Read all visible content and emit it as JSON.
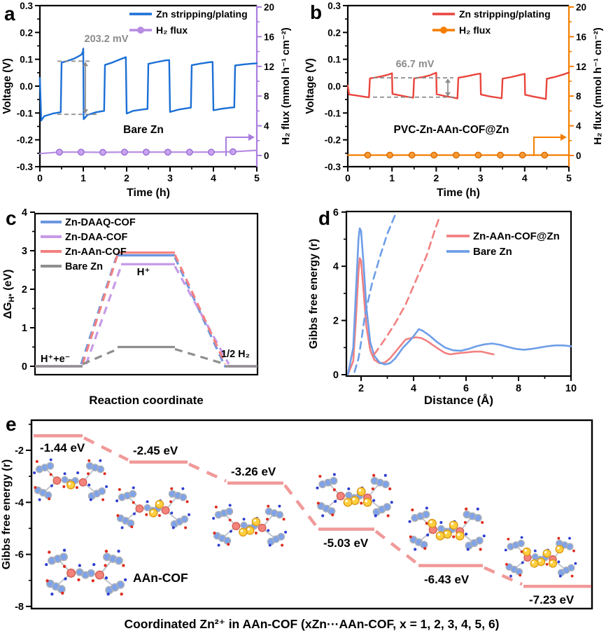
{
  "figure": {
    "panel_letters": [
      "a",
      "b",
      "c",
      "d",
      "e"
    ]
  },
  "chart_data": [
    {
      "panel": "a",
      "type": "line",
      "xlabel": "Time (h)",
      "ylabel_left": "Voltage (V)",
      "ylabel_right": "H₂ flux (mmol h⁻¹ cm⁻²)",
      "xlim": [
        0,
        5
      ],
      "ylim_left": [
        -0.3,
        0.3
      ],
      "ylim_right": [
        0,
        20
      ],
      "xticks": [
        0,
        1,
        2,
        3,
        4,
        5
      ],
      "yticks_left": [
        -0.3,
        -0.2,
        -0.1,
        0.0,
        0.1,
        0.2,
        0.3
      ],
      "yticks_right": [
        0,
        4,
        8,
        12,
        16,
        20
      ],
      "legend": [
        {
          "label": "Zn stripping/plating",
          "color": "#1b6fd6",
          "marker": false
        },
        {
          "label": "H₂ flux",
          "color": "#b78ce2",
          "marker": true
        }
      ],
      "sample_label": "Bare Zn",
      "annotation": {
        "text": "203.2 mV",
        "high_V": 0.093,
        "low_V": -0.105
      },
      "accent_color": "#a97de0",
      "series": [
        {
          "name": "Zn stripping/plating",
          "axis": "left",
          "color": "#1b6fd6",
          "points": [
            [
              0,
              0.03
            ],
            [
              0.03,
              -0.128
            ],
            [
              0.1,
              -0.112
            ],
            [
              0.3,
              -0.102
            ],
            [
              0.48,
              -0.097
            ],
            [
              0.5,
              0.088
            ],
            [
              0.62,
              0.093
            ],
            [
              0.78,
              0.102
            ],
            [
              0.9,
              0.112
            ],
            [
              0.96,
              0.118
            ],
            [
              0.99,
              0.128
            ],
            [
              1.0,
              0.14
            ],
            [
              1.01,
              -0.123
            ],
            [
              1.1,
              -0.107
            ],
            [
              1.3,
              -0.097
            ],
            [
              1.48,
              -0.092
            ],
            [
              1.5,
              0.079
            ],
            [
              1.65,
              0.087
            ],
            [
              1.85,
              0.1
            ],
            [
              1.98,
              0.108
            ],
            [
              2.0,
              -0.102
            ],
            [
              2.15,
              -0.092
            ],
            [
              2.35,
              -0.087
            ],
            [
              2.48,
              -0.085
            ],
            [
              2.5,
              0.083
            ],
            [
              2.7,
              0.09
            ],
            [
              2.9,
              0.096
            ],
            [
              2.98,
              0.097
            ],
            [
              3.0,
              -0.096
            ],
            [
              3.2,
              -0.087
            ],
            [
              3.4,
              -0.082
            ],
            [
              3.48,
              -0.08
            ],
            [
              3.5,
              0.078
            ],
            [
              3.7,
              0.084
            ],
            [
              3.9,
              0.089
            ],
            [
              3.98,
              0.09
            ],
            [
              4.0,
              -0.09
            ],
            [
              4.2,
              -0.084
            ],
            [
              4.4,
              -0.08
            ],
            [
              4.48,
              -0.079
            ],
            [
              4.5,
              0.077
            ],
            [
              4.7,
              0.081
            ],
            [
              4.9,
              0.084
            ],
            [
              5.0,
              0.085
            ]
          ]
        },
        {
          "name": "H₂ flux",
          "axis": "right",
          "color": "#b78ce2",
          "marker": true,
          "marker_fill": "#c9a4ee",
          "marker_edge": "#9a6cd8",
          "points": [
            [
              0,
              0.25
            ],
            [
              0.45,
              0.45
            ],
            [
              0.95,
              0.45
            ],
            [
              1.45,
              0.42
            ],
            [
              1.95,
              0.45
            ],
            [
              2.45,
              0.45
            ],
            [
              2.95,
              0.45
            ],
            [
              3.45,
              0.45
            ],
            [
              3.95,
              0.45
            ],
            [
              4.45,
              0.5
            ],
            [
              5.0,
              0.7
            ]
          ]
        }
      ]
    },
    {
      "panel": "b",
      "type": "line",
      "xlabel": "Time (h)",
      "ylabel_left": "Voltage (V)",
      "ylabel_right": "H₂ flux (mmol h⁻¹ cm⁻²)",
      "xlim": [
        0,
        5
      ],
      "ylim_left": [
        -0.3,
        0.3
      ],
      "ylim_right": [
        0,
        20
      ],
      "xticks": [
        0,
        1,
        2,
        3,
        4,
        5
      ],
      "yticks_left": [
        -0.3,
        -0.2,
        -0.1,
        0.0,
        0.1,
        0.2,
        0.3
      ],
      "yticks_right": [
        0,
        4,
        8,
        12,
        16,
        20
      ],
      "legend": [
        {
          "label": "Zn stripping/plating",
          "color": "#e9453c",
          "marker": false
        },
        {
          "label": "H₂ flux",
          "color": "#f57e00",
          "marker": true
        }
      ],
      "sample_label": "PVC-Zn-AAn-COF@Zn",
      "annotation": {
        "text": "66.7 mV",
        "high_V": 0.031,
        "low_V": -0.041
      },
      "accent_color": "#f57e00",
      "series": [
        {
          "name": "Zn stripping/plating",
          "axis": "left",
          "color": "#e9453c",
          "points": [
            [
              0,
              0.002
            ],
            [
              0.03,
              -0.031
            ],
            [
              0.2,
              -0.035
            ],
            [
              0.35,
              -0.039
            ],
            [
              0.48,
              -0.042
            ],
            [
              0.5,
              0.029
            ],
            [
              0.65,
              0.033
            ],
            [
              0.8,
              0.038
            ],
            [
              0.92,
              0.043
            ],
            [
              1.0,
              0.048
            ],
            [
              1.01,
              -0.029
            ],
            [
              1.2,
              -0.035
            ],
            [
              1.35,
              -0.04
            ],
            [
              1.48,
              -0.043
            ],
            [
              1.5,
              0.029
            ],
            [
              1.7,
              0.034
            ],
            [
              1.85,
              0.04
            ],
            [
              2.0,
              0.05
            ],
            [
              2.01,
              -0.03
            ],
            [
              2.2,
              -0.037
            ],
            [
              2.4,
              -0.043
            ],
            [
              2.48,
              -0.046
            ],
            [
              2.5,
              0.031
            ],
            [
              2.7,
              0.037
            ],
            [
              2.9,
              0.044
            ],
            [
              3.0,
              0.047
            ],
            [
              3.01,
              -0.031
            ],
            [
              3.2,
              -0.038
            ],
            [
              3.4,
              -0.043
            ],
            [
              3.48,
              -0.045
            ],
            [
              3.5,
              0.028
            ],
            [
              3.7,
              0.034
            ],
            [
              3.9,
              0.042
            ],
            [
              4.0,
              0.046
            ],
            [
              4.01,
              -0.032
            ],
            [
              4.2,
              -0.039
            ],
            [
              4.4,
              -0.045
            ],
            [
              4.48,
              -0.048
            ],
            [
              4.5,
              0.027
            ],
            [
              4.7,
              0.035
            ],
            [
              4.9,
              0.045
            ],
            [
              5.0,
              0.051
            ]
          ]
        },
        {
          "name": "H₂ flux",
          "axis": "right",
          "color": "#f57e00",
          "marker": true,
          "marker_fill": "#f79a33",
          "marker_edge": "#d86a00",
          "points": [
            [
              0,
              0.05
            ],
            [
              0.45,
              0.05
            ],
            [
              0.95,
              0.05
            ],
            [
              1.45,
              0.05
            ],
            [
              1.95,
              0.05
            ],
            [
              2.45,
              0.05
            ],
            [
              2.95,
              0.05
            ],
            [
              3.45,
              0.05
            ],
            [
              3.95,
              0.05
            ],
            [
              4.45,
              0.05
            ],
            [
              5.0,
              0.05
            ]
          ]
        }
      ]
    },
    {
      "panel": "c",
      "type": "line",
      "xlabel": "Reaction coordinate",
      "ylabel_parts": {
        "main": "ΔG",
        "sub": "H*",
        "rest": " (eV)"
      },
      "ylim": [
        -0.3,
        4.2
      ],
      "yticks": [
        0,
        1,
        2,
        3,
        4
      ],
      "series": [
        {
          "name": "Zn-DAAQ-COF",
          "color": "#6b97e0",
          "plateau": 2.88
        },
        {
          "name": "Zn-DAA-COF",
          "color": "#c79ae8",
          "plateau": 2.65
        },
        {
          "name": "Zn-AAn-COF",
          "color": "#f28080",
          "plateau": 2.95
        },
        {
          "name": "Bare Zn",
          "color": "#8f8f8f",
          "plateau": 0.5
        }
      ],
      "annotations": [
        {
          "text": "H⁺+e⁻",
          "pos": "start"
        },
        {
          "text": "H⁺",
          "pos": "top"
        },
        {
          "text": "1/2 H₂",
          "pos": "end"
        }
      ]
    },
    {
      "panel": "d",
      "type": "line",
      "xlabel": "Distance (Å)",
      "ylabel": "Gibbs free energy (r)",
      "xlim": [
        1.44,
        10
      ],
      "ylim": [
        0,
        6
      ],
      "xticks": [
        2,
        4,
        6,
        8,
        10
      ],
      "yticks": [
        0,
        2,
        4,
        6
      ],
      "legend": [
        {
          "label": "Zn-AAn-COF@Zn",
          "color": "#f28080"
        },
        {
          "label": "Bare Zn",
          "color": "#6e9ee8"
        }
      ],
      "series": [
        {
          "name": "Zn-AAn-COF@Zn",
          "style": "solid",
          "color": "#f28080",
          "points": [
            [
              1.5,
              0.02
            ],
            [
              1.7,
              0.5
            ],
            [
              1.8,
              2.0
            ],
            [
              1.9,
              3.8
            ],
            [
              1.95,
              4.3
            ],
            [
              2.0,
              4.2
            ],
            [
              2.1,
              3.0
            ],
            [
              2.2,
              1.8
            ],
            [
              2.35,
              0.9
            ],
            [
              2.5,
              0.55
            ],
            [
              2.7,
              0.42
            ],
            [
              2.9,
              0.45
            ],
            [
              3.1,
              0.6
            ],
            [
              3.4,
              0.95
            ],
            [
              3.7,
              1.3
            ],
            [
              3.9,
              1.35
            ],
            [
              4.1,
              1.38
            ],
            [
              4.3,
              1.35
            ],
            [
              4.5,
              1.25
            ],
            [
              4.8,
              1.05
            ],
            [
              5.0,
              0.92
            ],
            [
              5.2,
              0.8
            ],
            [
              5.4,
              0.75
            ],
            [
              5.6,
              0.78
            ],
            [
              5.8,
              0.8
            ],
            [
              6.0,
              0.82
            ],
            [
              6.3,
              0.85
            ],
            [
              6.6,
              0.85
            ],
            [
              6.9,
              0.78
            ],
            [
              7.05,
              0.75
            ]
          ]
        },
        {
          "name": "Bare Zn",
          "style": "solid",
          "color": "#6e9ee8",
          "points": [
            [
              1.5,
              0.02
            ],
            [
              1.7,
              1.0
            ],
            [
              1.8,
              3.0
            ],
            [
              1.9,
              5.0
            ],
            [
              1.95,
              5.4
            ],
            [
              2.0,
              5.3
            ],
            [
              2.1,
              4.0
            ],
            [
              2.2,
              2.5
            ],
            [
              2.35,
              1.2
            ],
            [
              2.5,
              0.7
            ],
            [
              2.7,
              0.45
            ],
            [
              2.9,
              0.38
            ],
            [
              3.1,
              0.42
            ],
            [
              3.3,
              0.6
            ],
            [
              3.6,
              1.0
            ],
            [
              3.9,
              1.3
            ],
            [
              4.1,
              1.55
            ],
            [
              4.2,
              1.68
            ],
            [
              4.35,
              1.62
            ],
            [
              4.6,
              1.45
            ],
            [
              4.9,
              1.2
            ],
            [
              5.2,
              1.0
            ],
            [
              5.5,
              0.9
            ],
            [
              5.8,
              0.88
            ],
            [
              6.1,
              0.95
            ],
            [
              6.4,
              1.05
            ],
            [
              6.7,
              1.12
            ],
            [
              7.0,
              1.15
            ],
            [
              7.3,
              1.1
            ],
            [
              7.6,
              1.02
            ],
            [
              7.9,
              0.95
            ],
            [
              8.2,
              0.92
            ],
            [
              8.5,
              0.95
            ],
            [
              8.8,
              1.0
            ],
            [
              9.1,
              1.05
            ],
            [
              9.4,
              1.08
            ],
            [
              9.7,
              1.08
            ],
            [
              10,
              1.05
            ]
          ]
        },
        {
          "name": "Bare Zn (integral)",
          "style": "dashed",
          "color": "#6e9ee8",
          "points": [
            [
              1.75,
              0.1
            ],
            [
              1.9,
              0.6
            ],
            [
              2.0,
              1.2
            ],
            [
              2.15,
              2.2
            ],
            [
              2.4,
              3.3
            ],
            [
              2.7,
              4.3
            ],
            [
              3.0,
              5.2
            ],
            [
              3.3,
              5.9
            ]
          ]
        },
        {
          "name": "Zn-AAn-COF@Zn (integral)",
          "style": "dashed",
          "color": "#f28080",
          "points": [
            [
              2.5,
              0.75
            ],
            [
              2.9,
              1.3
            ],
            [
              3.3,
              1.9
            ],
            [
              3.7,
              2.6
            ],
            [
              4.1,
              3.5
            ],
            [
              4.5,
              4.4
            ],
            [
              4.8,
              5.3
            ],
            [
              5.0,
              5.85
            ]
          ]
        }
      ]
    },
    {
      "panel": "e",
      "type": "line",
      "xlabel": "Coordinated Zn²⁺ in AAn-COF (xZn···AAn-COF, x = 1, 2, 3, 4, 5, 6)",
      "ylabel": "Gibbs free energy (r)",
      "ylim": [
        -8.1,
        -0.84
      ],
      "yticks": [
        -2,
        -4,
        -6,
        -8
      ],
      "step_color": "#f19999",
      "structure_label": "AAn-COF",
      "steps": [
        {
          "x": 1,
          "energy_eV": -1.44,
          "label": "-1.44 eV"
        },
        {
          "x": 2,
          "energy_eV": -2.45,
          "label": "-2.45 eV"
        },
        {
          "x": 3,
          "energy_eV": -3.26,
          "label": "-3.26 eV"
        },
        {
          "x": 4,
          "energy_eV": -5.03,
          "label": "-5.03 eV"
        },
        {
          "x": 5,
          "energy_eV": -6.43,
          "label": "-6.43 eV"
        },
        {
          "x": 6,
          "energy_eV": -7.23,
          "label": "-7.23 eV"
        }
      ],
      "structures": [
        {
          "zn_count": 1
        },
        {
          "zn_count": 2
        },
        {
          "zn_count": 3
        },
        {
          "zn_count": 4
        },
        {
          "zn_count": 5
        },
        {
          "zn_count": 6
        },
        {
          "zn_count": 0,
          "label": "AAn-COF"
        }
      ],
      "molecule_colors": {
        "ring": "#7fa3ea",
        "hub": "#f4837b",
        "zn_ion": "#ffcf3f",
        "o_dot": "#dd2b1c",
        "n_dot": "#2f3fd0"
      }
    }
  ]
}
